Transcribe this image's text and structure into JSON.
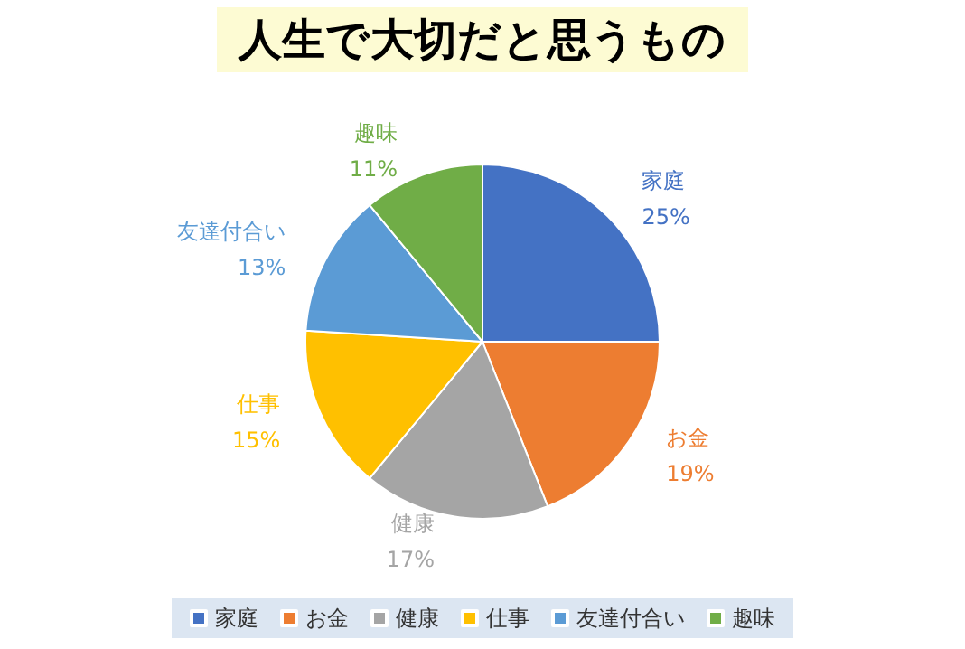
{
  "chart_data": {
    "type": "pie",
    "title": "人生で大切だと思うもの",
    "categories": [
      "家庭",
      "お金",
      "健康",
      "仕事",
      "友達付合い",
      "趣味"
    ],
    "values": [
      25,
      19,
      17,
      15,
      13,
      11
    ],
    "colors": [
      "#4472c4",
      "#ed7d31",
      "#a5a5a5",
      "#ffc000",
      "#5b9bd5",
      "#70ad47"
    ],
    "value_labels": [
      "25%",
      "19%",
      "17%",
      "15%",
      "13%",
      "11%"
    ],
    "legend": "bottom"
  }
}
